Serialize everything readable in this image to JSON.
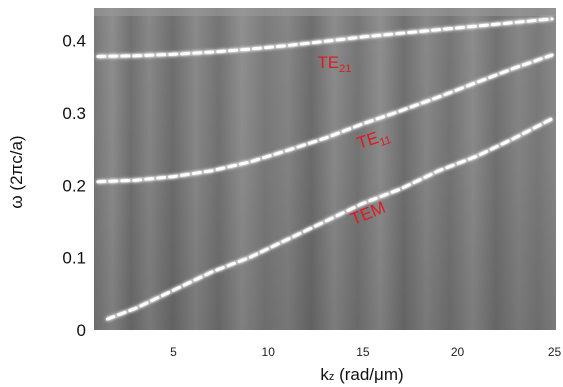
{
  "chart_data": {
    "type": "line",
    "title": "",
    "xlabel_main": "k",
    "xlabel_sub": "z",
    "xlabel_rest": " (rad/μm)",
    "ylabel": "ω (2πc/a)",
    "xlim": [
      0.8,
      25.2
    ],
    "ylim": [
      0,
      0.445
    ],
    "x_ticks": [
      "5",
      "10",
      "15",
      "20",
      "25"
    ],
    "x_tick_values": [
      5,
      10,
      15,
      20,
      25
    ],
    "y_ticks": [
      "0",
      "0.1",
      "0.2",
      "0.3",
      "0.4"
    ],
    "y_tick_values": [
      0,
      0.1,
      0.2,
      0.3,
      0.4
    ],
    "background": "grayscale intensity map",
    "series": [
      {
        "name": "TEM",
        "label_main": "TEM",
        "label_sub": "",
        "label_at": [
          14.5,
          0.145
        ],
        "label_rotation": -22,
        "x": [
          1.5,
          3,
          5,
          7,
          9,
          11,
          13,
          15,
          17,
          19,
          21,
          23,
          25
        ],
        "y": [
          0.015,
          0.03,
          0.055,
          0.08,
          0.1,
          0.125,
          0.15,
          0.175,
          0.195,
          0.22,
          0.24,
          0.265,
          0.292
        ]
      },
      {
        "name": "TE11",
        "label_main": "TE",
        "label_sub": "11",
        "label_at": [
          14.8,
          0.25
        ],
        "label_rotation": -18,
        "x": [
          1,
          3,
          5,
          7,
          9,
          11,
          13,
          15,
          17,
          19,
          21,
          23,
          25
        ],
        "y": [
          0.205,
          0.207,
          0.212,
          0.22,
          0.232,
          0.248,
          0.265,
          0.285,
          0.303,
          0.322,
          0.342,
          0.362,
          0.38
        ]
      },
      {
        "name": "TE21",
        "label_main": "TE",
        "label_sub": "21",
        "label_at": [
          12.6,
          0.362
        ],
        "label_rotation": 0,
        "x": [
          1,
          3,
          5,
          7,
          9,
          11,
          13,
          15,
          17,
          19,
          21,
          23,
          25
        ],
        "y": [
          0.378,
          0.379,
          0.381,
          0.384,
          0.388,
          0.393,
          0.399,
          0.405,
          0.41,
          0.415,
          0.42,
          0.425,
          0.43
        ]
      }
    ],
    "colors": {
      "labels": "#e0191f",
      "band": "#ffffff",
      "map_base": "#7d7d7d"
    }
  }
}
